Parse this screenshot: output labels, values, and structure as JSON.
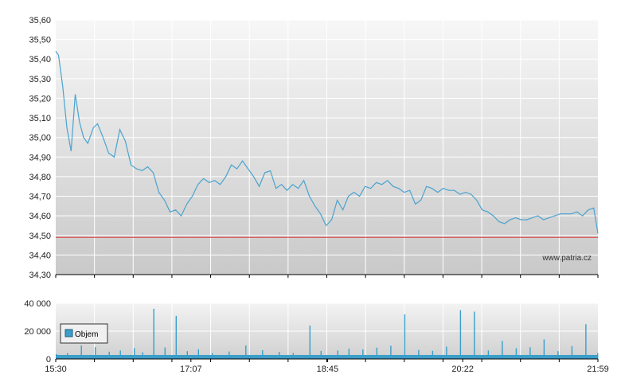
{
  "watermark": "www.patria.cz",
  "colors": {
    "price_line": "#4aa3cf",
    "reference_line": "#d9534f",
    "volume_bar": "#3a9ec9",
    "grid": "#ffffff"
  },
  "chart_data": [
    {
      "type": "line",
      "title": "",
      "xlabel": "",
      "ylabel": "",
      "ylim": [
        34.3,
        35.6
      ],
      "y_ticks": [
        "34,30",
        "34,40",
        "34,50",
        "34,60",
        "34,70",
        "34,80",
        "34,90",
        "35,00",
        "35,10",
        "35,20",
        "35,30",
        "35,40",
        "35,50",
        "35,60"
      ],
      "x_ticks": [
        "15:30",
        "17:07",
        "18:45",
        "20:22",
        "21:59"
      ],
      "grid": true,
      "reference_line": {
        "y": 34.49
      },
      "series": [
        {
          "x": [
            "15:30",
            "15:32",
            "15:35",
            "15:38",
            "15:41",
            "15:44",
            "15:47",
            "15:50",
            "15:53",
            "15:57",
            "16:00",
            "16:04",
            "16:08",
            "16:12",
            "16:16",
            "16:20",
            "16:24",
            "16:28",
            "16:32",
            "16:36",
            "16:40",
            "16:44",
            "16:48",
            "16:52",
            "16:56",
            "17:00",
            "17:04",
            "17:08",
            "17:12",
            "17:16",
            "17:20",
            "17:24",
            "17:28",
            "17:32",
            "17:36",
            "17:40",
            "17:44",
            "17:48",
            "17:52",
            "17:56",
            "18:00",
            "18:04",
            "18:08",
            "18:12",
            "18:16",
            "18:20",
            "18:24",
            "18:28",
            "18:32",
            "18:36",
            "18:40",
            "18:44",
            "18:48",
            "18:52",
            "18:56",
            "19:00",
            "19:04",
            "19:08",
            "19:12",
            "19:16",
            "19:20",
            "19:24",
            "19:28",
            "19:32",
            "19:36",
            "19:40",
            "19:44",
            "19:48",
            "19:52",
            "19:56",
            "20:00",
            "20:04",
            "20:08",
            "20:12",
            "20:16",
            "20:20",
            "20:24",
            "20:28",
            "20:32",
            "20:36",
            "20:40",
            "20:44",
            "20:48",
            "20:52",
            "20:56",
            "21:00",
            "21:04",
            "21:08",
            "21:12",
            "21:16",
            "21:20",
            "21:24",
            "21:28",
            "21:32",
            "21:36",
            "21:40",
            "21:44",
            "21:48",
            "21:52",
            "21:56",
            "21:59"
          ],
          "y": [
            35.44,
            35.42,
            35.26,
            35.05,
            34.93,
            35.22,
            35.08,
            35.0,
            34.97,
            35.05,
            35.07,
            35.0,
            34.92,
            34.9,
            35.04,
            34.98,
            34.86,
            34.84,
            34.83,
            34.85,
            34.82,
            34.72,
            34.68,
            34.62,
            34.63,
            34.6,
            34.66,
            34.7,
            34.76,
            34.79,
            34.77,
            34.78,
            34.76,
            34.8,
            34.86,
            34.84,
            34.88,
            34.84,
            34.8,
            34.75,
            34.82,
            34.83,
            34.74,
            34.76,
            34.73,
            34.76,
            34.74,
            34.78,
            34.7,
            34.65,
            34.61,
            34.55,
            34.58,
            34.68,
            34.63,
            34.7,
            34.72,
            34.7,
            34.75,
            34.74,
            34.77,
            34.76,
            34.78,
            34.75,
            34.74,
            34.72,
            34.73,
            34.66,
            34.68,
            34.75,
            34.74,
            34.72,
            34.74,
            34.73,
            34.73,
            34.71,
            34.72,
            34.71,
            34.68,
            34.63,
            34.62,
            34.6,
            34.57,
            34.56,
            34.58,
            34.59,
            34.58,
            34.58,
            34.59,
            34.6,
            34.58,
            34.59,
            34.6,
            34.61,
            34.61,
            34.61,
            34.62,
            34.6,
            34.63,
            34.64,
            34.51
          ]
        }
      ]
    },
    {
      "type": "bar",
      "title": "",
      "xlabel": "",
      "ylabel": "",
      "ylim": [
        0,
        40000
      ],
      "y_ticks": [
        "0",
        "20 000",
        "40 000"
      ],
      "x_ticks": [
        "15:30",
        "17:07",
        "18:45",
        "20:22",
        "21:59"
      ],
      "grid": true,
      "legend": {
        "entries": [
          "Objem"
        ],
        "placement": "top-left"
      },
      "series": [
        {
          "name": "Objem",
          "x": [
            "15:30",
            "15:38",
            "15:48",
            "15:58",
            "16:08",
            "16:16",
            "16:26",
            "16:32",
            "16:40",
            "16:48",
            "16:56",
            "17:04",
            "17:12",
            "17:22",
            "17:34",
            "17:46",
            "17:58",
            "18:10",
            "18:20",
            "18:32",
            "18:40",
            "18:52",
            "19:00",
            "19:10",
            "19:20",
            "19:30",
            "19:40",
            "19:50",
            "20:00",
            "20:10",
            "20:20",
            "20:30",
            "20:40",
            "20:50",
            "21:00",
            "21:10",
            "21:20",
            "21:30",
            "21:40",
            "21:50",
            "21:59"
          ],
          "values": [
            3500,
            4200,
            9800,
            8500,
            5200,
            6100,
            7800,
            4800,
            36000,
            8300,
            31000,
            5600,
            6900,
            4100,
            5400,
            9700,
            6300,
            5100,
            4200,
            24000,
            5800,
            6100,
            7300,
            6800,
            8100,
            9500,
            32000,
            6400,
            5900,
            8800,
            35000,
            34000,
            6100,
            13000,
            7700,
            8400,
            14000,
            5600,
            9200,
            25000,
            4200
          ]
        }
      ]
    }
  ]
}
